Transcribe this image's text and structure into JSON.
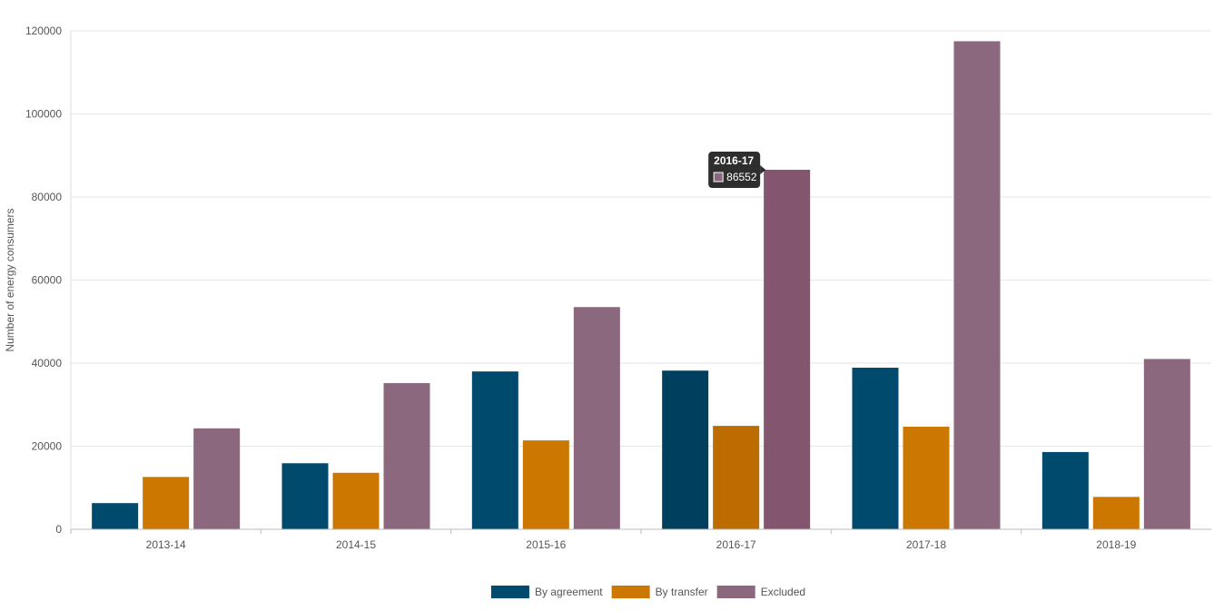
{
  "chart_data": {
    "type": "bar",
    "ylabel": "Number of energy consumers",
    "xlabel": "",
    "title": "",
    "ylim": [
      0,
      120000
    ],
    "yticks": [
      0,
      20000,
      40000,
      60000,
      80000,
      100000,
      120000
    ],
    "grid": true,
    "legend_position": "bottom-center",
    "categories": [
      "2013-14",
      "2014-15",
      "2015-16",
      "2016-17",
      "2017-18",
      "2018-19"
    ],
    "series": [
      {
        "name": "By agreement",
        "color": "#004a6d",
        "values": [
          6300,
          15900,
          38000,
          38200,
          38900,
          18600
        ]
      },
      {
        "name": "By transfer",
        "color": "#cc7700",
        "values": [
          12600,
          13600,
          21400,
          24900,
          24700,
          7800
        ]
      },
      {
        "name": "Excluded",
        "color": "#8c687e",
        "values": [
          24300,
          35200,
          53500,
          86552,
          117500,
          41000
        ]
      }
    ],
    "tooltip": {
      "category": "2016-17",
      "series_index": 2,
      "category_index": 3,
      "title": "2016-17",
      "value_text": "86552"
    },
    "highlight_colors": [
      "#00405e",
      "#bd6d00",
      "#84556f"
    ]
  }
}
